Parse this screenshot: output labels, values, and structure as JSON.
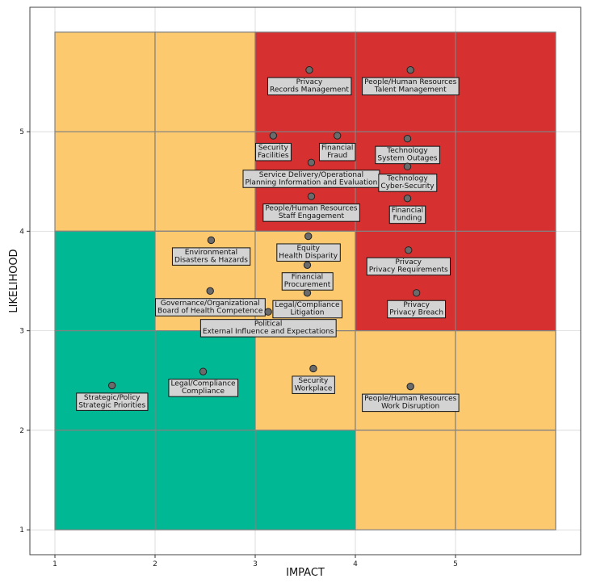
{
  "colors": {
    "red": "#d63031",
    "amber": "#fcc96f",
    "green": "#00b894",
    "point_fill": "#6b6b6b",
    "label_bg": "#d3d3d3"
  },
  "chart_data": {
    "type": "scatter",
    "title": "",
    "xlabel": "IMPACT",
    "ylabel": "LIKELIHOOD",
    "xlim": [
      0.75,
      6.25
    ],
    "ylim": [
      0.75,
      6.25
    ],
    "xticks": [
      "1",
      "2",
      "3",
      "4",
      "5"
    ],
    "yticks": [
      "1",
      "2",
      "3",
      "4",
      "5"
    ],
    "grid": true,
    "heat_cells": [
      {
        "x0": 1,
        "x1": 2,
        "y0": 5,
        "y1": 6,
        "zone": "amber"
      },
      {
        "x0": 2,
        "x1": 3,
        "y0": 5,
        "y1": 6,
        "zone": "amber"
      },
      {
        "x0": 3,
        "x1": 4,
        "y0": 5,
        "y1": 6,
        "zone": "red"
      },
      {
        "x0": 4,
        "x1": 5,
        "y0": 5,
        "y1": 6,
        "zone": "red"
      },
      {
        "x0": 5,
        "x1": 6,
        "y0": 5,
        "y1": 6,
        "zone": "red"
      },
      {
        "x0": 1,
        "x1": 2,
        "y0": 4,
        "y1": 5,
        "zone": "amber"
      },
      {
        "x0": 2,
        "x1": 3,
        "y0": 4,
        "y1": 5,
        "zone": "amber"
      },
      {
        "x0": 3,
        "x1": 4,
        "y0": 4,
        "y1": 5,
        "zone": "red"
      },
      {
        "x0": 4,
        "x1": 5,
        "y0": 4,
        "y1": 5,
        "zone": "red"
      },
      {
        "x0": 5,
        "x1": 6,
        "y0": 4,
        "y1": 5,
        "zone": "red"
      },
      {
        "x0": 1,
        "x1": 2,
        "y0": 3,
        "y1": 4,
        "zone": "green"
      },
      {
        "x0": 2,
        "x1": 3,
        "y0": 3,
        "y1": 4,
        "zone": "amber"
      },
      {
        "x0": 3,
        "x1": 4,
        "y0": 3,
        "y1": 4,
        "zone": "amber"
      },
      {
        "x0": 4,
        "x1": 5,
        "y0": 3,
        "y1": 4,
        "zone": "red"
      },
      {
        "x0": 5,
        "x1": 6,
        "y0": 3,
        "y1": 4,
        "zone": "red"
      },
      {
        "x0": 1,
        "x1": 2,
        "y0": 2,
        "y1": 3,
        "zone": "green"
      },
      {
        "x0": 2,
        "x1": 3,
        "y0": 2,
        "y1": 3,
        "zone": "green"
      },
      {
        "x0": 3,
        "x1": 4,
        "y0": 2,
        "y1": 3,
        "zone": "amber"
      },
      {
        "x0": 4,
        "x1": 5,
        "y0": 2,
        "y1": 3,
        "zone": "amber"
      },
      {
        "x0": 5,
        "x1": 6,
        "y0": 2,
        "y1": 3,
        "zone": "amber"
      },
      {
        "x0": 1,
        "x1": 2,
        "y0": 1,
        "y1": 2,
        "zone": "green"
      },
      {
        "x0": 2,
        "x1": 3,
        "y0": 1,
        "y1": 2,
        "zone": "green"
      },
      {
        "x0": 3,
        "x1": 4,
        "y0": 1,
        "y1": 2,
        "zone": "green"
      },
      {
        "x0": 4,
        "x1": 5,
        "y0": 1,
        "y1": 2,
        "zone": "amber"
      },
      {
        "x0": 5,
        "x1": 6,
        "y0": 1,
        "y1": 2,
        "zone": "amber"
      }
    ],
    "points": [
      {
        "x": 3.54,
        "y": 5.62,
        "label": [
          "Privacy",
          "Records Management"
        ]
      },
      {
        "x": 4.55,
        "y": 5.62,
        "label": [
          "People/Human Resources",
          "Talent Management"
        ]
      },
      {
        "x": 3.18,
        "y": 4.96,
        "label": [
          "Security",
          "Facilities"
        ]
      },
      {
        "x": 3.82,
        "y": 4.96,
        "label": [
          "Financial",
          "Fraud"
        ]
      },
      {
        "x": 4.52,
        "y": 4.93,
        "label": [
          "Technology",
          "System Outages"
        ]
      },
      {
        "x": 3.56,
        "y": 4.69,
        "label": [
          "Service Delivery/Operational",
          "Planning Information and Evaluation"
        ]
      },
      {
        "x": 4.52,
        "y": 4.65,
        "label": [
          "Technology",
          "Cyber-Security"
        ]
      },
      {
        "x": 3.56,
        "y": 4.35,
        "label": [
          "People/Human Resources",
          "Staff Engagement"
        ]
      },
      {
        "x": 4.52,
        "y": 4.33,
        "label": [
          "Financial",
          "Funding"
        ]
      },
      {
        "x": 2.56,
        "y": 3.91,
        "label": [
          "Environmental",
          "Disasters & Hazards"
        ]
      },
      {
        "x": 3.53,
        "y": 3.95,
        "label": [
          "Equity",
          "Health Disparity"
        ]
      },
      {
        "x": 4.53,
        "y": 3.81,
        "label": [
          "Privacy",
          "Privacy Requirements"
        ]
      },
      {
        "x": 3.52,
        "y": 3.66,
        "label": [
          "Financial",
          "Procurement"
        ]
      },
      {
        "x": 2.55,
        "y": 3.4,
        "label": [
          "Governance/Organizational",
          "Board of Health Competence"
        ]
      },
      {
        "x": 3.52,
        "y": 3.38,
        "label": [
          "Legal/Compliance",
          "Litigation"
        ]
      },
      {
        "x": 4.61,
        "y": 3.38,
        "label": [
          "Privacy",
          "Privacy Breach"
        ]
      },
      {
        "x": 3.13,
        "y": 3.19,
        "label": [
          "Political",
          "External Influence and Expectations"
        ]
      },
      {
        "x": 3.58,
        "y": 2.62,
        "label": [
          "Security",
          "Workplace"
        ]
      },
      {
        "x": 2.48,
        "y": 2.59,
        "label": [
          "Legal/Compliance",
          "Compliance"
        ]
      },
      {
        "x": 1.57,
        "y": 2.45,
        "label": [
          "Strategic/Policy",
          "Strategic Priorities"
        ]
      },
      {
        "x": 4.55,
        "y": 2.44,
        "label": [
          "People/Human Resources",
          "Work Disruption"
        ]
      }
    ]
  }
}
